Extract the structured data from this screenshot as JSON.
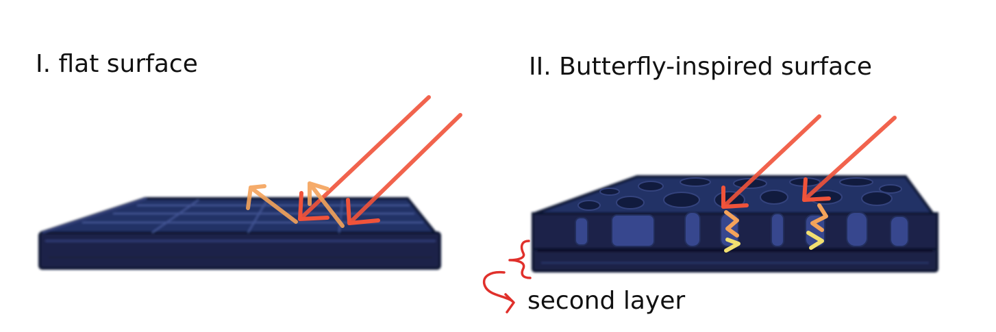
{
  "panels": {
    "flat": {
      "title": "I. flat surface"
    },
    "butterfly": {
      "title": "II. Butterfly-inspired surface"
    }
  },
  "annotation": {
    "text": "second layer"
  },
  "colors": {
    "panel_dark": "#1b2448",
    "panel_top": "#233066",
    "grid_line": "#4e63a8",
    "incident_ray": "#f0533a",
    "reflected_ray": "#f4a35a",
    "trapped_light": "#f2e070",
    "bracket": "#e0302b",
    "text": "#111111"
  }
}
